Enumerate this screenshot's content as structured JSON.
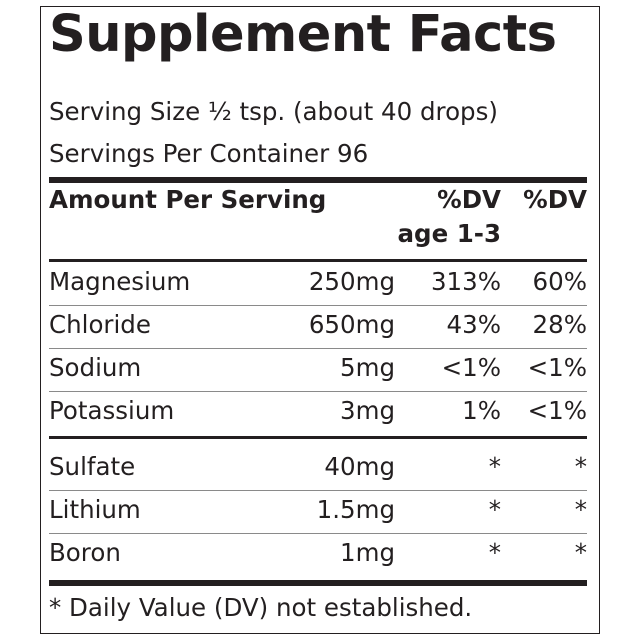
{
  "panel": {
    "title": "Supplement Facts",
    "serving_size": "Serving Size ½ tsp. (about 40 drops)",
    "servings_per_container": "Servings Per Container 96"
  },
  "header": {
    "amount_per_serving": "Amount Per Serving",
    "dv_children_line1": "%DV",
    "dv_children_line2": "age 1-3",
    "dv_adults": "%DV"
  },
  "nutrients": [
    {
      "name": "Magnesium",
      "amount": "250mg",
      "dv_age_1_3": "313%",
      "dv": "60%"
    },
    {
      "name": "Chloride",
      "amount": "650mg",
      "dv_age_1_3": "43%",
      "dv": "28%"
    },
    {
      "name": "Sodium",
      "amount": "5mg",
      "dv_age_1_3": "<1%",
      "dv": "<1%"
    },
    {
      "name": "Potassium",
      "amount": "3mg",
      "dv_age_1_3": "1%",
      "dv": "<1%"
    }
  ],
  "other_ingredients": [
    {
      "name": "Sulfate",
      "amount": "40mg",
      "dv_age_1_3": "*",
      "dv": "*"
    },
    {
      "name": "Lithium",
      "amount": "1.5mg",
      "dv_age_1_3": "*",
      "dv": "*"
    },
    {
      "name": "Boron",
      "amount": "1mg",
      "dv_age_1_3": "*",
      "dv": "*"
    }
  ],
  "footnote": "* Daily Value (DV) not established."
}
